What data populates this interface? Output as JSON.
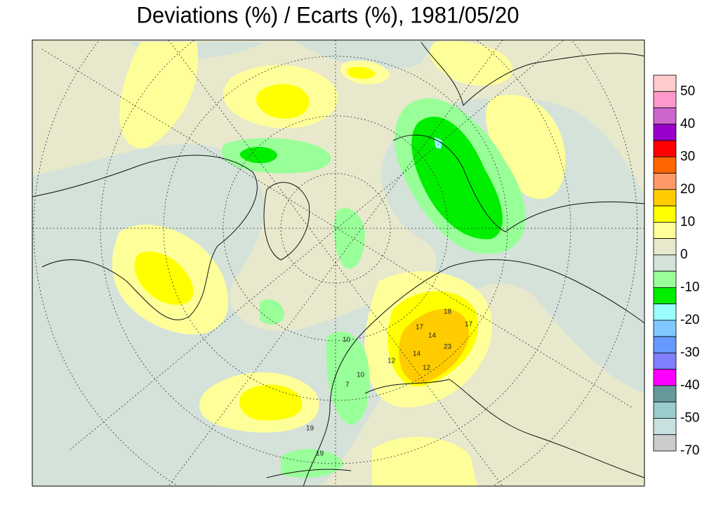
{
  "title": "Deviations (%) / Ecarts (%), 1981/05/20",
  "legend": {
    "colors": [
      "#ffcccc",
      "#ff99cc",
      "#cc66cc",
      "#9900cc",
      "#ff0000",
      "#ff6600",
      "#ff9966",
      "#ffcc00",
      "#ffff00",
      "#ffff99",
      "#e8e8cc",
      "#d4e2da",
      "#99ff99",
      "#00ee00",
      "#99ffff",
      "#80c8ff",
      "#6699ff",
      "#8080ff",
      "#ff00ff",
      "#669999",
      "#99cccc",
      "#c8e0e0",
      "#cccccc"
    ],
    "labels": [
      50,
      40,
      30,
      20,
      10,
      0,
      -10,
      -20,
      -30,
      -40,
      -50,
      -70
    ]
  },
  "contour_labels": [
    18,
    17,
    14,
    23,
    12,
    17,
    14,
    12,
    10,
    10,
    7,
    19,
    19
  ]
}
